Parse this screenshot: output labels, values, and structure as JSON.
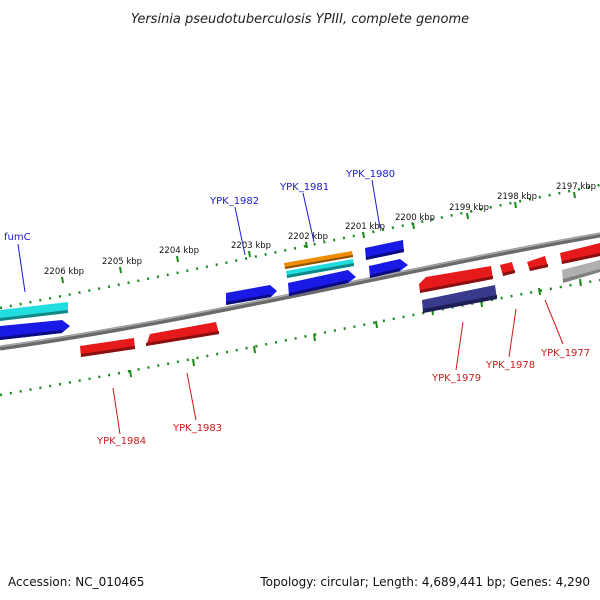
{
  "title": "Yersinia pseudotuberculosis YPIII, complete genome",
  "footer": {
    "accession": "Accession: NC_010465",
    "summary": "Topology: circular; Length: 4,689,441 bp; Genes: 4,290"
  },
  "colors": {
    "backbone": "#808080",
    "tick": "#1a8a1a",
    "forward_label": "#1a1acc",
    "reverse_label": "#cc1a1a",
    "cds_blue": "#1a1ae6",
    "cds_red": "#e61a1a",
    "cds_cyan": "#22dddd",
    "cds_orange": "#f08c00",
    "cds_navy": "#3a3a8c",
    "cds_gray": "#b0b0b0"
  },
  "tick_labels": [
    "2206 kbp",
    "2205 kbp",
    "2204 kbp",
    "2203 kbp",
    "2202 kbp",
    "2201 kbp",
    "2200 kbp",
    "2199 kbp",
    "2198 kbp",
    "2197 kbp"
  ],
  "gene_labels": {
    "forward": [
      "fumC",
      "YPK_1982",
      "YPK_1981",
      "YPK_1980"
    ],
    "reverse": [
      "YPK_1984",
      "YPK_1983",
      "YPK_1979",
      "YPK_1978",
      "YPK_1977"
    ]
  }
}
